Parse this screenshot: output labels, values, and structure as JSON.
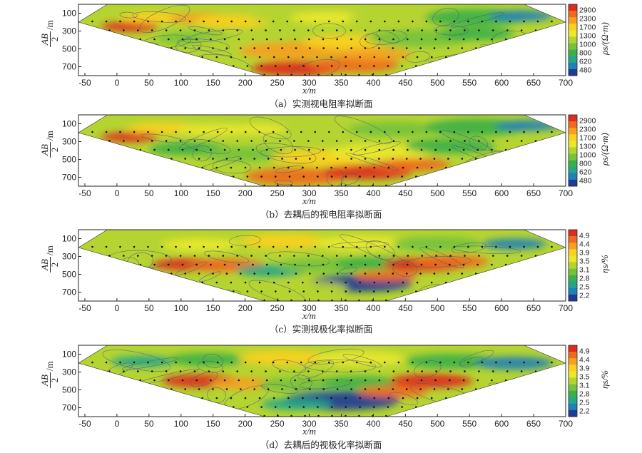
{
  "colors": {
    "palette": [
      "#1e3c96",
      "#2080b8",
      "#25a68a",
      "#3cb046",
      "#76c23a",
      "#b5d431",
      "#e9e82a",
      "#fbd020",
      "#f7a020",
      "#ef6a1e",
      "#dd2b1d"
    ],
    "contour": "#4a5a78",
    "point": "#111111"
  },
  "chart_data": [
    {
      "type": "heatmap",
      "title": "（a）实测视电阻率拟断面",
      "xlabel": "x/m",
      "ylabel_num": "AB",
      "ylabel_den": "2",
      "ylabel_unit": "/m",
      "x_ticks": [
        "-50",
        "0",
        "50",
        "100",
        "150",
        "200",
        "250",
        "300",
        "350",
        "400",
        "450",
        "500",
        "550",
        "600",
        "650",
        "700"
      ],
      "y_ticks": [
        "100",
        "300",
        "500",
        "700"
      ],
      "xlim": [
        -60,
        700
      ],
      "ylim": [
        0,
        800
      ],
      "section": {
        "top_left_x": -60,
        "top_right_x": 700,
        "top_y": 200,
        "bottom_left_x": 230,
        "bottom_right_x": 420,
        "bottom_y": 800
      },
      "colorbar_label": "ρs/(Ω·m)",
      "colorbar_ticks": [
        "2900",
        "2300",
        "1700",
        "1300",
        "1000",
        "800",
        "620",
        "480"
      ],
      "seed": 11,
      "hotspots": [
        {
          "x": 20,
          "y": 250,
          "r": 45,
          "level": 10
        },
        {
          "x": 60,
          "y": 150,
          "r": 55,
          "level": 7
        },
        {
          "x": 130,
          "y": 160,
          "r": 50,
          "level": 8
        },
        {
          "x": 180,
          "y": 190,
          "r": 60,
          "level": 7
        },
        {
          "x": 250,
          "y": 150,
          "r": 40,
          "level": 5
        },
        {
          "x": 330,
          "y": 150,
          "r": 60,
          "level": 6
        },
        {
          "x": 430,
          "y": 160,
          "r": 70,
          "level": 5
        },
        {
          "x": 560,
          "y": 150,
          "r": 80,
          "level": 3
        },
        {
          "x": 630,
          "y": 130,
          "r": 50,
          "level": 1
        },
        {
          "x": 120,
          "y": 380,
          "r": 60,
          "level": 4
        },
        {
          "x": 190,
          "y": 450,
          "r": 70,
          "level": 5
        },
        {
          "x": 270,
          "y": 520,
          "r": 80,
          "level": 8
        },
        {
          "x": 360,
          "y": 420,
          "r": 70,
          "level": 7
        },
        {
          "x": 470,
          "y": 380,
          "r": 80,
          "level": 4
        },
        {
          "x": 560,
          "y": 330,
          "r": 60,
          "level": 3
        },
        {
          "x": 280,
          "y": 720,
          "r": 70,
          "level": 10
        },
        {
          "x": 370,
          "y": 680,
          "r": 70,
          "level": 9
        },
        {
          "x": 400,
          "y": 560,
          "r": 60,
          "level": 8
        }
      ]
    },
    {
      "type": "heatmap",
      "title": "（b）去耦后的视电阻率拟断面",
      "xlabel": "x/m",
      "ylabel_num": "AB",
      "ylabel_den": "2",
      "ylabel_unit": "/m",
      "x_ticks": [
        "-50",
        "0",
        "50",
        "100",
        "150",
        "200",
        "250",
        "300",
        "350",
        "400",
        "450",
        "500",
        "550",
        "600",
        "650",
        "700"
      ],
      "y_ticks": [
        "100",
        "300",
        "500",
        "700"
      ],
      "xlim": [
        -60,
        700
      ],
      "ylim": [
        0,
        800
      ],
      "section": {
        "top_left_x": -60,
        "top_right_x": 700,
        "top_y": 200,
        "bottom_left_x": 230,
        "bottom_right_x": 420,
        "bottom_y": 800
      },
      "colorbar_label": "ρs/(Ω·m)",
      "colorbar_ticks": [
        "2900",
        "2300",
        "1700",
        "1300",
        "1000",
        "800",
        "620",
        "480"
      ],
      "seed": 23,
      "hotspots": [
        {
          "x": 20,
          "y": 250,
          "r": 45,
          "level": 10
        },
        {
          "x": 70,
          "y": 150,
          "r": 55,
          "level": 7
        },
        {
          "x": 150,
          "y": 170,
          "r": 55,
          "level": 6
        },
        {
          "x": 220,
          "y": 160,
          "r": 50,
          "level": 6
        },
        {
          "x": 320,
          "y": 150,
          "r": 60,
          "level": 5
        },
        {
          "x": 430,
          "y": 160,
          "r": 70,
          "level": 4
        },
        {
          "x": 560,
          "y": 140,
          "r": 80,
          "level": 3
        },
        {
          "x": 640,
          "y": 120,
          "r": 50,
          "level": 1
        },
        {
          "x": 110,
          "y": 380,
          "r": 60,
          "level": 3
        },
        {
          "x": 200,
          "y": 440,
          "r": 70,
          "level": 4
        },
        {
          "x": 320,
          "y": 480,
          "r": 80,
          "level": 7
        },
        {
          "x": 410,
          "y": 420,
          "r": 80,
          "level": 6
        },
        {
          "x": 520,
          "y": 350,
          "r": 70,
          "level": 3
        },
        {
          "x": 280,
          "y": 690,
          "r": 80,
          "level": 9
        },
        {
          "x": 390,
          "y": 640,
          "r": 70,
          "level": 10
        },
        {
          "x": 460,
          "y": 560,
          "r": 60,
          "level": 9
        }
      ]
    },
    {
      "type": "heatmap",
      "title": "（c）实测视极化率拟断面",
      "xlabel": "x/m",
      "ylabel_num": "AB",
      "ylabel_den": "2",
      "ylabel_unit": "/m",
      "x_ticks": [
        "-50",
        "0",
        "50",
        "100",
        "150",
        "200",
        "250",
        "300",
        "350",
        "400",
        "450",
        "500",
        "550",
        "600",
        "650",
        "700"
      ],
      "y_ticks": [
        "100",
        "300",
        "500",
        "700"
      ],
      "xlim": [
        -60,
        700
      ],
      "ylim": [
        0,
        800
      ],
      "section": {
        "top_left_x": -60,
        "top_right_x": 700,
        "top_y": 200,
        "bottom_left_x": 230,
        "bottom_right_x": 420,
        "bottom_y": 800
      },
      "colorbar_label": "ηs/%",
      "colorbar_ticks": [
        "4.9",
        "4.4",
        "3.9",
        "3.5",
        "3.1",
        "2.8",
        "2.5",
        "2.2"
      ],
      "seed": 37,
      "hotspots": [
        {
          "x": 30,
          "y": 200,
          "r": 60,
          "level": 5
        },
        {
          "x": 130,
          "y": 170,
          "r": 60,
          "level": 6
        },
        {
          "x": 260,
          "y": 130,
          "r": 70,
          "level": 7
        },
        {
          "x": 380,
          "y": 150,
          "r": 70,
          "level": 6
        },
        {
          "x": 500,
          "y": 160,
          "r": 70,
          "level": 4
        },
        {
          "x": 620,
          "y": 160,
          "r": 50,
          "level": 1
        },
        {
          "x": 110,
          "y": 390,
          "r": 55,
          "level": 10
        },
        {
          "x": 170,
          "y": 400,
          "r": 60,
          "level": 9
        },
        {
          "x": 240,
          "y": 460,
          "r": 55,
          "level": 2
        },
        {
          "x": 320,
          "y": 400,
          "r": 70,
          "level": 4
        },
        {
          "x": 400,
          "y": 380,
          "r": 60,
          "level": 3
        },
        {
          "x": 480,
          "y": 390,
          "r": 65,
          "level": 10
        },
        {
          "x": 520,
          "y": 360,
          "r": 60,
          "level": 9
        },
        {
          "x": 380,
          "y": 600,
          "r": 80,
          "level": 0
        },
        {
          "x": 300,
          "y": 650,
          "r": 60,
          "level": 5
        },
        {
          "x": 420,
          "y": 520,
          "r": 50,
          "level": 9
        }
      ]
    },
    {
      "type": "heatmap",
      "title": "（d）去耦后的视极化率拟断面",
      "xlabel": "x/m",
      "ylabel_num": "AB",
      "ylabel_den": "2",
      "ylabel_unit": "/m",
      "x_ticks": [
        "-50",
        "0",
        "50",
        "100",
        "150",
        "200",
        "250",
        "300",
        "350",
        "400",
        "450",
        "500",
        "550",
        "600",
        "650",
        "700"
      ],
      "y_ticks": [
        "100",
        "300",
        "500",
        "700"
      ],
      "xlim": [
        -60,
        700
      ],
      "ylim": [
        0,
        800
      ],
      "section": {
        "top_left_x": -60,
        "top_right_x": 700,
        "top_y": 200,
        "bottom_left_x": 230,
        "bottom_right_x": 420,
        "bottom_y": 800
      },
      "colorbar_label": "ηs/%",
      "colorbar_ticks": [
        "4.9",
        "4.4",
        "3.9",
        "3.5",
        "3.1",
        "2.8",
        "2.5",
        "2.2"
      ],
      "seed": 53,
      "hotspots": [
        {
          "x": 40,
          "y": 180,
          "r": 50,
          "level": 2
        },
        {
          "x": 140,
          "y": 160,
          "r": 60,
          "level": 3
        },
        {
          "x": 260,
          "y": 140,
          "r": 70,
          "level": 7
        },
        {
          "x": 380,
          "y": 150,
          "r": 70,
          "level": 6
        },
        {
          "x": 520,
          "y": 180,
          "r": 70,
          "level": 3
        },
        {
          "x": 620,
          "y": 200,
          "r": 60,
          "level": 1
        },
        {
          "x": 130,
          "y": 400,
          "r": 60,
          "level": 10
        },
        {
          "x": 200,
          "y": 430,
          "r": 55,
          "level": 8
        },
        {
          "x": 290,
          "y": 440,
          "r": 70,
          "level": 4
        },
        {
          "x": 380,
          "y": 420,
          "r": 60,
          "level": 3
        },
        {
          "x": 490,
          "y": 400,
          "r": 65,
          "level": 10
        },
        {
          "x": 350,
          "y": 620,
          "r": 90,
          "level": 0
        },
        {
          "x": 280,
          "y": 660,
          "r": 55,
          "level": 2
        },
        {
          "x": 430,
          "y": 520,
          "r": 55,
          "level": 9
        }
      ]
    }
  ]
}
